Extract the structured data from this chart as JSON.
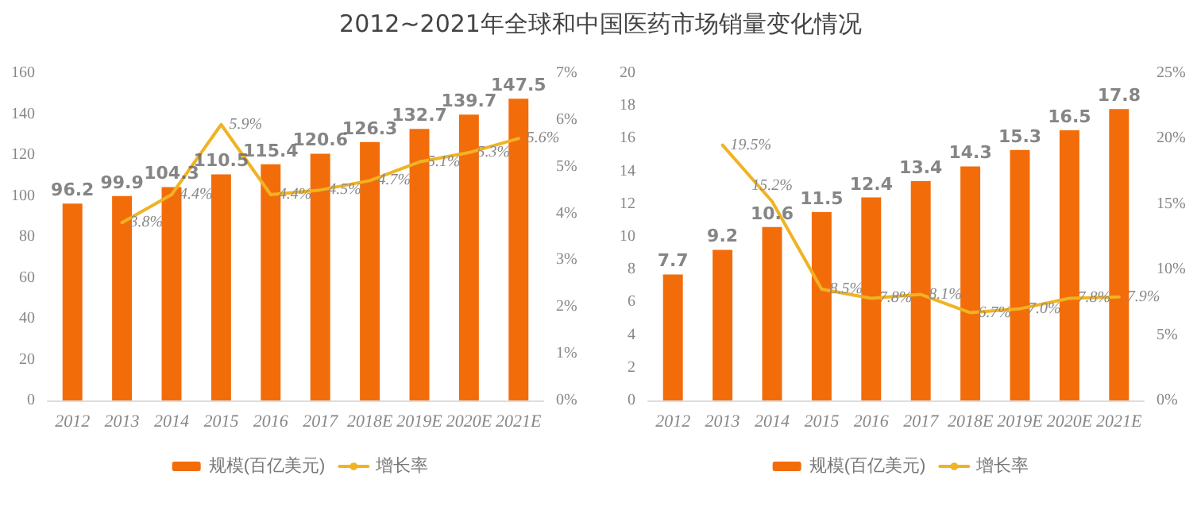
{
  "chart_data": [
    {
      "type": "bar",
      "title": "2012~2021年全球和中国医药市场销量变化情况",
      "categories": [
        "2012",
        "2013",
        "2014",
        "2015",
        "2016",
        "2017",
        "2018E",
        "2019E",
        "2020E",
        "2021E"
      ],
      "series": [
        {
          "name": "规模(百亿美元)",
          "color": "#f36c0a",
          "values": [
            96.2,
            99.9,
            104.3,
            110.5,
            115.4,
            120.6,
            126.3,
            132.7,
            139.7,
            147.5
          ],
          "value_labels": [
            "96.2",
            "99.9",
            "104.3",
            "110.5",
            "115.4",
            "120.6",
            "126.3",
            "132.7",
            "139.7",
            "147.5"
          ]
        },
        {
          "name": "增长率",
          "type": "line",
          "axis": "y2",
          "color": "#f0b323",
          "values": [
            null,
            3.8,
            4.4,
            5.9,
            4.4,
            4.5,
            4.7,
            5.1,
            5.3,
            5.6
          ],
          "value_labels": [
            null,
            "3.8%",
            "4.4%",
            "5.9%",
            "4.4%",
            "4.5%",
            "4.7%",
            "5.1%",
            "5.3%",
            "5.6%"
          ]
        }
      ],
      "ylim": [
        0,
        160
      ],
      "yticks": [
        0,
        20,
        40,
        60,
        80,
        100,
        120,
        140,
        160
      ],
      "y2lim": [
        0,
        7
      ],
      "y2ticks": [
        {
          "value": 0,
          "label": "0%"
        },
        {
          "value": 1,
          "label": "1%"
        },
        {
          "value": 2,
          "label": "2%"
        },
        {
          "value": 3,
          "label": "3%"
        },
        {
          "value": 4,
          "label": "4%"
        },
        {
          "value": 5,
          "label": "5%"
        },
        {
          "value": 6,
          "label": "6%"
        },
        {
          "value": 7,
          "label": "7%"
        }
      ],
      "legend": "bottom",
      "grid": false,
      "marker": "none",
      "line_style": "solid"
    },
    {
      "type": "bar",
      "categories": [
        "2012",
        "2013",
        "2014",
        "2015",
        "2016",
        "2017",
        "2018E",
        "2019E",
        "2020E",
        "2021E"
      ],
      "series": [
        {
          "name": "规模(百亿美元)",
          "color": "#f36c0a",
          "values": [
            7.7,
            9.2,
            10.6,
            11.5,
            12.4,
            13.4,
            14.3,
            15.3,
            16.5,
            17.8
          ],
          "value_labels": [
            "7.7",
            "9.2",
            "10.6",
            "11.5",
            "12.4",
            "13.4",
            "14.3",
            "15.3",
            "16.5",
            "17.8"
          ]
        },
        {
          "name": "增长率",
          "type": "line",
          "axis": "y2",
          "color": "#f0b323",
          "values": [
            null,
            19.5,
            15.2,
            8.5,
            7.8,
            8.1,
            6.7,
            7.0,
            7.8,
            7.9
          ],
          "value_labels": [
            null,
            "19.5%",
            "15.2%",
            "8.5%",
            "7.8%",
            "8.1%",
            "6.7%",
            "7.0%",
            "7.8%",
            "7.9%"
          ]
        }
      ],
      "ylim": [
        0,
        20
      ],
      "yticks": [
        0,
        2,
        4,
        6,
        8,
        10,
        12,
        14,
        16,
        18,
        20
      ],
      "y2lim": [
        0,
        25
      ],
      "y2ticks": [
        {
          "value": 0,
          "label": "0%"
        },
        {
          "value": 5,
          "label": "5%"
        },
        {
          "value": 10,
          "label": "10%"
        },
        {
          "value": 15,
          "label": "15%"
        },
        {
          "value": 20,
          "label": "20%"
        },
        {
          "value": 25,
          "label": "25%"
        }
      ],
      "legend": "bottom",
      "grid": false,
      "marker": "none",
      "line_style": "solid"
    }
  ]
}
